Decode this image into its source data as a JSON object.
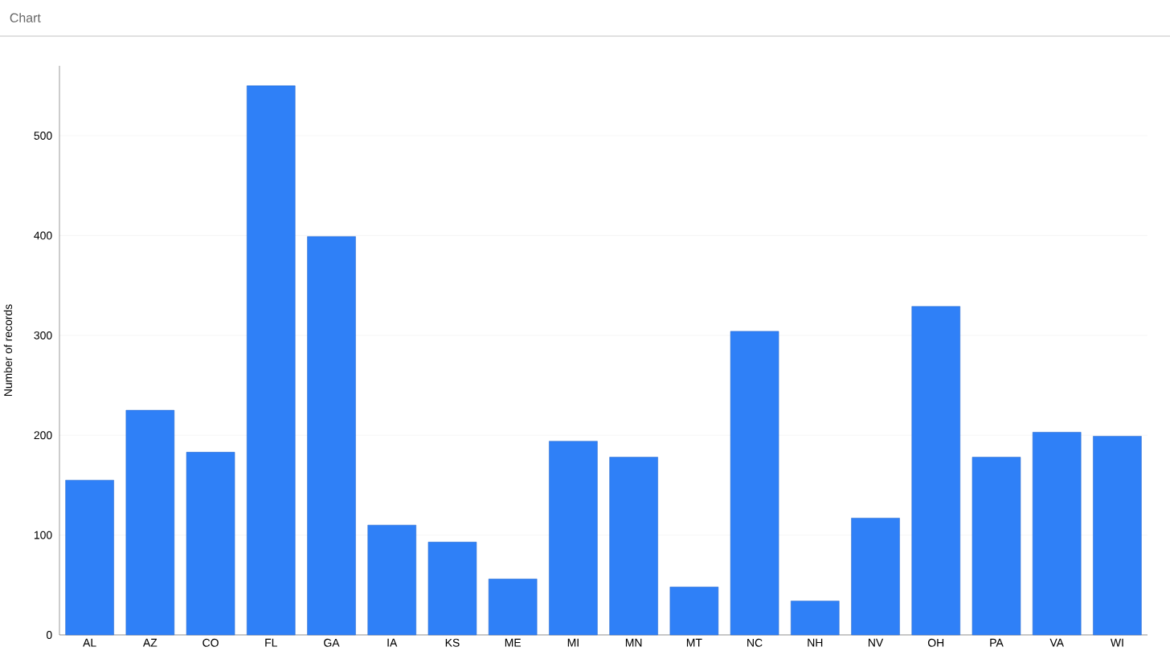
{
  "chart_data": {
    "type": "bar",
    "title": "Chart",
    "ylabel": "Number of records",
    "categories": [
      "AL",
      "AZ",
      "CO",
      "FL",
      "GA",
      "IA",
      "KS",
      "ME",
      "MI",
      "MN",
      "MT",
      "NC",
      "NH",
      "NV",
      "OH",
      "PA",
      "VA",
      "WI"
    ],
    "values": [
      155,
      225,
      183,
      550,
      399,
      110,
      93,
      56,
      194,
      178,
      48,
      304,
      34,
      117,
      329,
      178,
      203,
      199
    ],
    "color": "#2f80f7",
    "ylim": [
      0,
      570
    ],
    "yticks": [
      0,
      100,
      200,
      300,
      400,
      500
    ],
    "grid": "y"
  }
}
